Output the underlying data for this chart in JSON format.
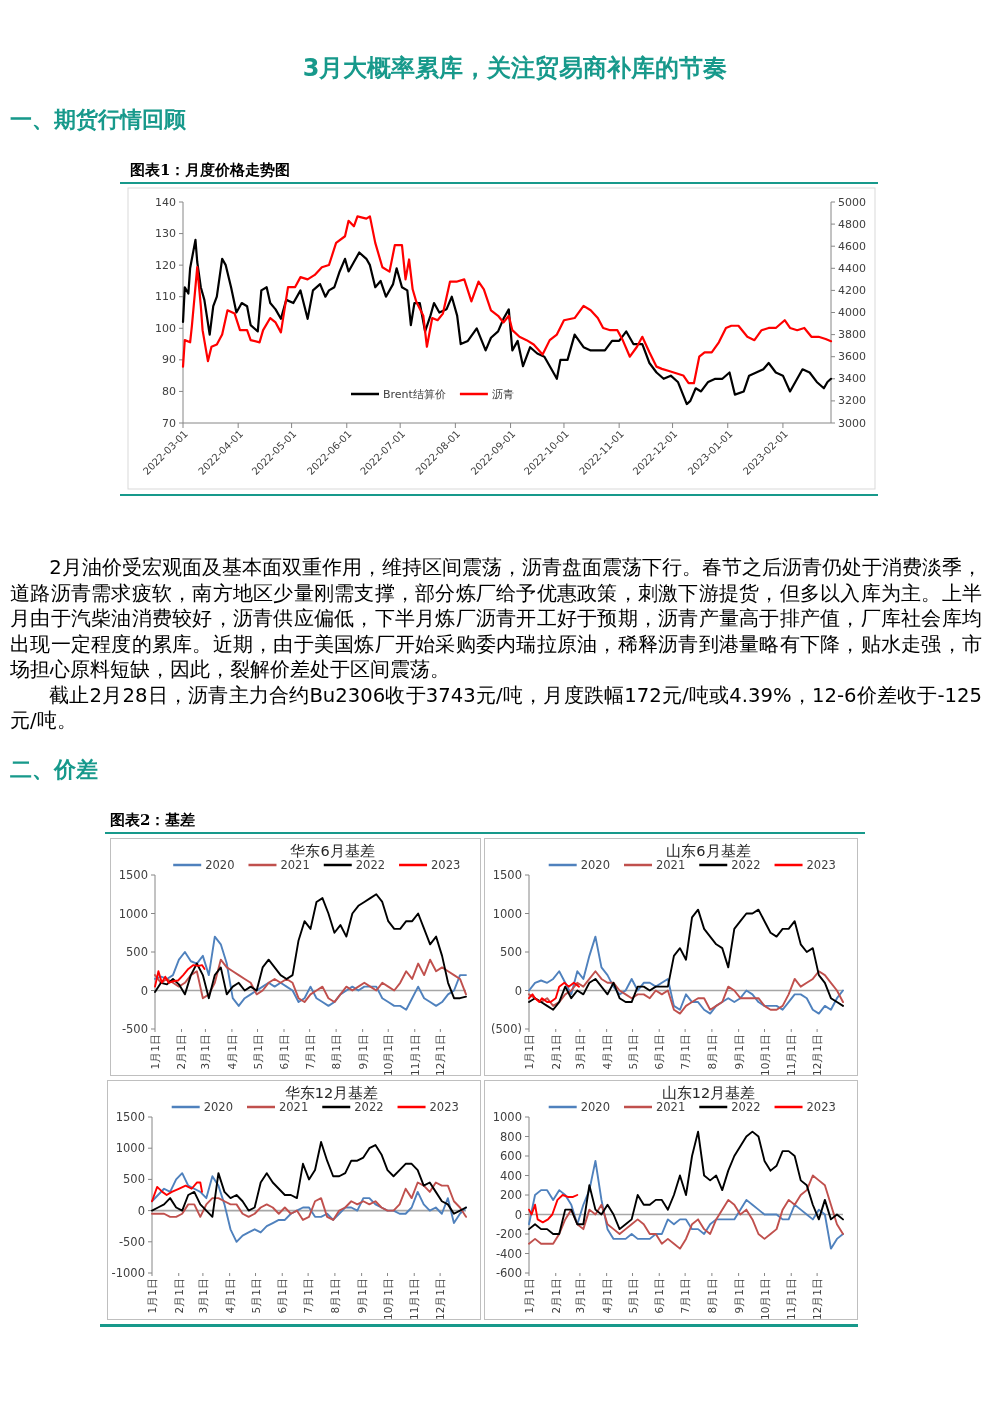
{
  "chart_data": [
    {
      "type": "line",
      "title": "图表1：月度价格走势图",
      "annotations": [
        "3月大概率累库，关注贸易商补库的节奏",
        "一、期货行情回顾",
        "2月油价受宏观面及基本面双重作用，维持区间震荡，沥青盘面震荡下行。春节之后沥青仍处于消费淡季，道路沥青需求疲软，南方地区少量刚需支撑，部分炼厂给予优惠政策，刺激下游提货，但多以入库为主。上半月由于汽柴油消费较好，沥青供应偏低，下半月炼厂沥青开工好于预期，沥青产量高于排产值，厂库社会库均出现一定程度的累库。近期，由于美国炼厂开始采购委内瑞拉原油，稀释沥青到港量略有下降，贴水走强，市场担心原料短缺，因此，裂解价差处于区间震荡。",
        "截止2月28日，沥青主力合约Bu2306收于3743元/吨，月度跌幅172元/吨或4.39%，12-6价差收于-125元/吨。",
        "二、价差",
        "图表2：基差"
      ],
      "xlim": [
        "2022-03-01",
        "2023-02-28"
      ],
      "xticks": [
        "2022-03-01",
        "2022-04-01",
        "2022-05-01",
        "2022-06-01",
        "2022-07-01",
        "2022-08-01",
        "2022-09-01",
        "2022-10-01",
        "2022-11-01",
        "2022-12-01",
        "2023-01-01",
        "2023-02-01"
      ],
      "ylim": [
        70,
        140
      ],
      "yticks": [
        70,
        80,
        90,
        100,
        110,
        120,
        130,
        140
      ],
      "y2lim": [
        3000,
        5000
      ],
      "y2ticks": [
        3000,
        3200,
        3400,
        3600,
        3800,
        4000,
        4200,
        4400,
        4600,
        4800,
        5000
      ],
      "legend": "bottom",
      "series": [
        {
          "name": "Brent结算价",
          "color": "#000000",
          "x": [
            "2022-03-01",
            "2022-03-02",
            "2022-03-04",
            "2022-03-05",
            "2022-03-08",
            "2022-03-09",
            "2022-03-11",
            "2022-03-13",
            "2022-03-16",
            "2022-03-18",
            "2022-03-20",
            "2022-03-23",
            "2022-03-25",
            "2022-03-28",
            "2022-03-31",
            "2022-04-03",
            "2022-04-06",
            "2022-04-08",
            "2022-04-12",
            "2022-04-14",
            "2022-04-17",
            "2022-04-19",
            "2022-04-22",
            "2022-04-25",
            "2022-04-28",
            "2022-05-02",
            "2022-05-06",
            "2022-05-10",
            "2022-05-13",
            "2022-05-17",
            "2022-05-20",
            "2022-05-22",
            "2022-05-25",
            "2022-05-28",
            "2022-05-31",
            "2022-06-02",
            "2022-06-05",
            "2022-06-08",
            "2022-06-12",
            "2022-06-14",
            "2022-06-17",
            "2022-06-20",
            "2022-06-23",
            "2022-06-27",
            "2022-06-29",
            "2022-07-02",
            "2022-07-05",
            "2022-07-07",
            "2022-07-09",
            "2022-07-12",
            "2022-07-15",
            "2022-07-18",
            "2022-07-20",
            "2022-07-23",
            "2022-07-27",
            "2022-07-30",
            "2022-08-02",
            "2022-08-04",
            "2022-08-08",
            "2022-08-13",
            "2022-08-18",
            "2022-08-21",
            "2022-08-25",
            "2022-08-28",
            "2022-08-31",
            "2022-09-02",
            "2022-09-05",
            "2022-09-08",
            "2022-09-12",
            "2022-09-16",
            "2022-09-20",
            "2022-09-24",
            "2022-09-27",
            "2022-09-29",
            "2022-10-03",
            "2022-10-07",
            "2022-10-12",
            "2022-10-16",
            "2022-10-20",
            "2022-10-24",
            "2022-10-28",
            "2022-11-01",
            "2022-11-05",
            "2022-11-09",
            "2022-11-14",
            "2022-11-18",
            "2022-11-22",
            "2022-11-26",
            "2022-11-30",
            "2022-12-04",
            "2022-12-09",
            "2022-12-11",
            "2022-12-14",
            "2022-12-17",
            "2022-12-21",
            "2022-12-25",
            "2022-12-29",
            "2023-01-02",
            "2023-01-05",
            "2023-01-10",
            "2023-01-13",
            "2023-01-17",
            "2023-01-21",
            "2023-01-24",
            "2023-01-28",
            "2023-02-01",
            "2023-02-05",
            "2023-02-09",
            "2023-02-12",
            "2023-02-16",
            "2023-02-20",
            "2023-02-24",
            "2023-02-26",
            "2023-02-28"
          ],
          "values": [
            102,
            113,
            111,
            119,
            128,
            121,
            113,
            109,
            98,
            107,
            110,
            122,
            120,
            113,
            105,
            108,
            107,
            101,
            99,
            112,
            113,
            108,
            106,
            103,
            109,
            108,
            112,
            103,
            112,
            114,
            110,
            112,
            113,
            118,
            122,
            118,
            121,
            124,
            122,
            120,
            113,
            115,
            110,
            114,
            119,
            113,
            112,
            101,
            108,
            108,
            99,
            104,
            108,
            105,
            106,
            110,
            104,
            95,
            96,
            100,
            93,
            97,
            99,
            103,
            106,
            93,
            96,
            88,
            94,
            92,
            91,
            87,
            84,
            90,
            90,
            98,
            94,
            93,
            93,
            93,
            96,
            96,
            99,
            95,
            95,
            89,
            86,
            84,
            85,
            83,
            76,
            77,
            81,
            80,
            83,
            84,
            84,
            86,
            79,
            80,
            85,
            86,
            87,
            89,
            86,
            85,
            80,
            84,
            87,
            86,
            83,
            81,
            83,
            84
          ]
        },
        {
          "name": "沥青",
          "color": "#ff0000",
          "axis": "y2",
          "x": [
            "2022-03-01",
            "2022-03-02",
            "2022-03-05",
            "2022-03-06",
            "2022-03-09",
            "2022-03-11",
            "2022-03-12",
            "2022-03-15",
            "2022-03-17",
            "2022-03-20",
            "2022-03-23",
            "2022-03-26",
            "2022-03-30",
            "2022-04-02",
            "2022-04-06",
            "2022-04-08",
            "2022-04-13",
            "2022-04-15",
            "2022-04-19",
            "2022-04-22",
            "2022-04-25",
            "2022-04-29",
            "2022-05-03",
            "2022-05-06",
            "2022-05-10",
            "2022-05-14",
            "2022-05-18",
            "2022-05-22",
            "2022-05-26",
            "2022-05-31",
            "2022-06-02",
            "2022-06-05",
            "2022-06-07",
            "2022-06-12",
            "2022-06-14",
            "2022-06-17",
            "2022-06-21",
            "2022-06-25",
            "2022-06-28",
            "2022-07-02",
            "2022-07-04",
            "2022-07-06",
            "2022-07-08",
            "2022-07-10",
            "2022-07-14",
            "2022-07-16",
            "2022-07-19",
            "2022-07-22",
            "2022-07-25",
            "2022-07-29",
            "2022-08-02",
            "2022-08-06",
            "2022-08-10",
            "2022-08-14",
            "2022-08-17",
            "2022-08-21",
            "2022-08-25",
            "2022-08-28",
            "2022-08-31",
            "2022-09-02",
            "2022-09-06",
            "2022-09-10",
            "2022-09-14",
            "2022-09-19",
            "2022-09-23",
            "2022-09-27",
            "2022-10-01",
            "2022-10-07",
            "2022-10-12",
            "2022-10-16",
            "2022-10-20",
            "2022-10-23",
            "2022-10-27",
            "2022-10-31",
            "2022-11-03",
            "2022-11-07",
            "2022-11-11",
            "2022-11-14",
            "2022-11-18",
            "2022-11-22",
            "2022-11-25",
            "2022-11-29",
            "2022-12-03",
            "2022-12-07",
            "2022-12-10",
            "2022-12-13",
            "2022-12-16",
            "2022-12-19",
            "2022-12-23",
            "2022-12-27",
            "2022-12-31",
            "2023-01-03",
            "2023-01-07",
            "2023-01-12",
            "2023-01-16",
            "2023-01-20",
            "2023-01-24",
            "2023-01-28",
            "2023-02-02",
            "2023-02-05",
            "2023-02-09",
            "2023-02-13",
            "2023-02-17",
            "2023-02-21",
            "2023-02-25",
            "2023-02-28"
          ],
          "values": [
            3510,
            3750,
            3730,
            3880,
            4410,
            4060,
            3840,
            3560,
            3690,
            3710,
            3800,
            4020,
            3990,
            3840,
            3840,
            3750,
            3730,
            3840,
            3950,
            3910,
            3820,
            4230,
            4230,
            4320,
            4300,
            4340,
            4410,
            4430,
            4630,
            4690,
            4830,
            4780,
            4870,
            4850,
            4870,
            4630,
            4410,
            4370,
            4610,
            4610,
            4300,
            4480,
            4210,
            4100,
            3970,
            3690,
            3950,
            3930,
            3990,
            4280,
            4280,
            4300,
            4100,
            4280,
            4210,
            4020,
            3970,
            3910,
            3970,
            3840,
            3780,
            3750,
            3710,
            3620,
            3750,
            3800,
            3930,
            3950,
            4060,
            4020,
            3950,
            3860,
            3840,
            3840,
            3750,
            3600,
            3690,
            3780,
            3640,
            3510,
            3490,
            3470,
            3450,
            3430,
            3360,
            3360,
            3600,
            3640,
            3640,
            3730,
            3860,
            3880,
            3880,
            3780,
            3750,
            3840,
            3860,
            3860,
            3930,
            3860,
            3840,
            3860,
            3780,
            3780,
            3760,
            3740
          ]
        }
      ]
    },
    {
      "type": "line",
      "title": "华东6月基差",
      "x": [
        "--01-01",
        "--01-08",
        "--01-15",
        "--01-22",
        "--01-29",
        "--02-05",
        "--02-12",
        "--02-19",
        "--02-26",
        "--03-05",
        "--03-12",
        "--03-19",
        "--03-26",
        "--04-02",
        "--04-09",
        "--04-16",
        "--04-23",
        "--04-30",
        "--05-07",
        "--05-14",
        "--05-21",
        "--05-28",
        "--06-04",
        "--06-11",
        "--06-18",
        "--06-25",
        "--07-02",
        "--07-09",
        "--07-16",
        "--07-23",
        "--07-30",
        "--08-06",
        "--08-13",
        "--08-20",
        "--08-27",
        "--09-03",
        "--09-10",
        "--09-17",
        "--09-24",
        "--10-01",
        "--10-08",
        "--10-15",
        "--10-22",
        "--10-29",
        "--11-05",
        "--11-12",
        "--11-19",
        "--11-26",
        "--12-03",
        "--12-10",
        "--12-17",
        "--12-24",
        "--12-31"
      ],
      "xlim": [
        "--01-01",
        "--12-31"
      ],
      "xticks": [
        {
          "value": "--01-01",
          "label": "1月1日"
        },
        {
          "value": "--02-01",
          "label": "2月1日"
        },
        {
          "value": "--03-01",
          "label": "3月1日"
        },
        {
          "value": "--04-01",
          "label": "4月1日"
        },
        {
          "value": "--05-01",
          "label": "5月1日"
        },
        {
          "value": "--06-01",
          "label": "6月1日"
        },
        {
          "value": "--07-01",
          "label": "7月1日"
        },
        {
          "value": "--08-01",
          "label": "8月1日"
        },
        {
          "value": "--09-01",
          "label": "9月1日"
        },
        {
          "value": "--10-01",
          "label": "10月1日"
        },
        {
          "value": "--11-01",
          "label": "11月1日"
        },
        {
          "value": "--12-01",
          "label": "12月1日"
        }
      ],
      "ylim": [
        -500,
        1500
      ],
      "yticks": [
        -500,
        0,
        500,
        1000,
        1500
      ],
      "legend": "top",
      "series": [
        {
          "name": "2020",
          "color": "#4f81bd",
          "values": [
            150,
            180,
            150,
            200,
            400,
            500,
            380,
            350,
            450,
            200,
            700,
            600,
            350,
            -100,
            -200,
            -100,
            -50,
            0,
            50,
            100,
            50,
            100,
            50,
            0,
            -150,
            -100,
            50,
            -100,
            -150,
            -200,
            -150,
            -50,
            0,
            50,
            0,
            50,
            50,
            50,
            -100,
            -150,
            -200,
            -200,
            -250,
            -100,
            50,
            -100,
            -150,
            -200,
            -150,
            -50,
            0,
            200,
            200
          ]
        },
        {
          "name": "2021",
          "color": "#c0504d",
          "values": [
            200,
            100,
            150,
            100,
            50,
            100,
            200,
            250,
            -100,
            -50,
            100,
            400,
            300,
            250,
            200,
            150,
            100,
            -50,
            0,
            100,
            150,
            100,
            150,
            100,
            -100,
            -150,
            -50,
            0,
            50,
            -100,
            -150,
            -50,
            50,
            0,
            50,
            100,
            50,
            0,
            100,
            50,
            0,
            100,
            250,
            150,
            350,
            200,
            400,
            250,
            300,
            250,
            200,
            150,
            -50
          ]
        },
        {
          "name": "2022",
          "color": "#000000",
          "values": [
            -20,
            100,
            80,
            150,
            80,
            -50,
            200,
            350,
            200,
            -100,
            200,
            300,
            -50,
            50,
            100,
            0,
            50,
            0,
            300,
            400,
            300,
            200,
            150,
            200,
            650,
            900,
            800,
            1150,
            1200,
            1000,
            750,
            850,
            700,
            1000,
            1100,
            1150,
            1200,
            1250,
            1150,
            900,
            800,
            800,
            900,
            900,
            1000,
            800,
            600,
            700,
            450,
            100,
            -100,
            -100,
            -80
          ]
        },
        {
          "name": "2023",
          "color": "#ff0000",
          "x": [
            "--01-01",
            "--01-05",
            "--01-09",
            "--01-13",
            "--01-17",
            "--01-22",
            "--01-28",
            "--02-03",
            "--02-09",
            "--02-15",
            "--02-21",
            "--02-25",
            "--02-28"
          ],
          "values": [
            50,
            250,
            100,
            180,
            100,
            120,
            130,
            200,
            280,
            330,
            320,
            330,
            280
          ]
        }
      ]
    },
    {
      "type": "line",
      "title": "山东6月基差",
      "x": [
        "--01-01",
        "--01-08",
        "--01-15",
        "--01-22",
        "--01-29",
        "--02-05",
        "--02-12",
        "--02-19",
        "--02-26",
        "--03-05",
        "--03-12",
        "--03-19",
        "--03-26",
        "--04-02",
        "--04-09",
        "--04-16",
        "--04-23",
        "--04-30",
        "--05-07",
        "--05-14",
        "--05-21",
        "--05-28",
        "--06-04",
        "--06-11",
        "--06-18",
        "--06-25",
        "--07-02",
        "--07-09",
        "--07-16",
        "--07-23",
        "--07-30",
        "--08-06",
        "--08-13",
        "--08-20",
        "--08-27",
        "--09-03",
        "--09-10",
        "--09-17",
        "--09-24",
        "--10-01",
        "--10-08",
        "--10-15",
        "--10-22",
        "--10-29",
        "--11-05",
        "--11-12",
        "--11-19",
        "--11-26",
        "--12-03",
        "--12-10",
        "--12-17",
        "--12-24",
        "--12-31"
      ],
      "xlim": [
        "--01-01",
        "--12-31"
      ],
      "xticks": [
        {
          "value": "--01-01",
          "label": "1月1日"
        },
        {
          "value": "--02-01",
          "label": "2月1日"
        },
        {
          "value": "--03-01",
          "label": "3月1日"
        },
        {
          "value": "--04-01",
          "label": "4月1日"
        },
        {
          "value": "--05-01",
          "label": "5月1日"
        },
        {
          "value": "--06-01",
          "label": "6月1日"
        },
        {
          "value": "--07-01",
          "label": "7月1日"
        },
        {
          "value": "--08-01",
          "label": "8月1日"
        },
        {
          "value": "--09-01",
          "label": "9月1日"
        },
        {
          "value": "--10-01",
          "label": "10月1日"
        },
        {
          "value": "--11-01",
          "label": "11月1日"
        },
        {
          "value": "--12-01",
          "label": "12月1日"
        }
      ],
      "ylim": [
        -500,
        1500
      ],
      "yticks": [
        {
          "value": -500,
          "label": "(500)"
        },
        0,
        500,
        1000,
        1500
      ],
      "legend": "top",
      "series": [
        {
          "name": "2020",
          "color": "#4f81bd",
          "values": [
            0,
            100,
            130,
            100,
            150,
            250,
            100,
            -50,
            250,
            150,
            450,
            700,
            300,
            200,
            50,
            -50,
            0,
            150,
            0,
            100,
            100,
            50,
            100,
            150,
            -200,
            -250,
            -50,
            -150,
            -150,
            -250,
            -300,
            -200,
            -150,
            -100,
            -150,
            -100,
            0,
            -50,
            -150,
            -200,
            -200,
            -200,
            -250,
            -150,
            -50,
            -50,
            -100,
            -250,
            -300,
            -200,
            -250,
            -100,
            0
          ]
        },
        {
          "name": "2021",
          "color": "#c0504d",
          "values": [
            -50,
            -100,
            -150,
            -100,
            -200,
            -150,
            -50,
            0,
            100,
            50,
            150,
            250,
            150,
            100,
            100,
            0,
            -50,
            -100,
            -50,
            -50,
            -100,
            0,
            -50,
            0,
            -250,
            -300,
            -200,
            -150,
            -100,
            -100,
            -250,
            -200,
            -150,
            50,
            0,
            -100,
            -100,
            -100,
            -100,
            -200,
            -250,
            -250,
            -200,
            -50,
            150,
            50,
            100,
            150,
            250,
            200,
            100,
            0,
            -150
          ]
        },
        {
          "name": "2022",
          "color": "#000000",
          "values": [
            -150,
            -100,
            -150,
            -200,
            -250,
            -150,
            50,
            -100,
            0,
            -50,
            100,
            150,
            50,
            -50,
            100,
            -100,
            -150,
            -150,
            50,
            50,
            0,
            50,
            50,
            50,
            450,
            550,
            400,
            950,
            1050,
            800,
            700,
            600,
            550,
            300,
            800,
            900,
            1000,
            1000,
            1050,
            900,
            750,
            700,
            800,
            800,
            900,
            600,
            500,
            550,
            200,
            100,
            -100,
            -150,
            -200
          ]
        },
        {
          "name": "2023",
          "color": "#ff0000",
          "x": [
            "--01-01",
            "--01-05",
            "--01-08",
            "--01-13",
            "--01-16",
            "--01-22",
            "--01-26",
            "--02-01",
            "--02-05",
            "--02-11",
            "--02-16",
            "--02-22",
            "--02-28"
          ],
          "values": [
            -100,
            -50,
            -100,
            -150,
            -100,
            -150,
            -150,
            -100,
            50,
            100,
            50,
            100,
            50
          ]
        }
      ]
    },
    {
      "type": "line",
      "title": "华东12月基差",
      "x": [
        "--01-01",
        "--01-08",
        "--01-15",
        "--01-22",
        "--01-29",
        "--02-05",
        "--02-12",
        "--02-19",
        "--02-26",
        "--03-05",
        "--03-12",
        "--03-19",
        "--03-26",
        "--04-02",
        "--04-09",
        "--04-16",
        "--04-23",
        "--04-30",
        "--05-07",
        "--05-14",
        "--05-21",
        "--05-28",
        "--06-04",
        "--06-11",
        "--06-18",
        "--06-25",
        "--07-02",
        "--07-09",
        "--07-16",
        "--07-23",
        "--07-30",
        "--08-06",
        "--08-13",
        "--08-20",
        "--08-27",
        "--09-03",
        "--09-10",
        "--09-17",
        "--09-24",
        "--10-01",
        "--10-08",
        "--10-15",
        "--10-22",
        "--10-29",
        "--11-05",
        "--11-12",
        "--11-19",
        "--11-26",
        "--12-03",
        "--12-10",
        "--12-17",
        "--12-24",
        "--12-31"
      ],
      "xlim": [
        "--01-01",
        "--12-31"
      ],
      "xticks": [
        {
          "value": "--01-01",
          "label": "1月1日"
        },
        {
          "value": "--02-01",
          "label": "2月1日"
        },
        {
          "value": "--03-01",
          "label": "3月1日"
        },
        {
          "value": "--04-01",
          "label": "4月1日"
        },
        {
          "value": "--05-01",
          "label": "5月1日"
        },
        {
          "value": "--06-01",
          "label": "6月1日"
        },
        {
          "value": "--07-01",
          "label": "7月1日"
        },
        {
          "value": "--08-01",
          "label": "8月1日"
        },
        {
          "value": "--09-01",
          "label": "9月1日"
        },
        {
          "value": "--10-01",
          "label": "10月1日"
        },
        {
          "value": "--11-01",
          "label": "11月1日"
        },
        {
          "value": "--12-01",
          "label": "12月1日"
        }
      ],
      "ylim": [
        -1000,
        1500
      ],
      "yticks": [
        -1000,
        -500,
        0,
        500,
        1000,
        1500
      ],
      "legend": "top",
      "series": [
        {
          "name": "2020",
          "color": "#4f81bd",
          "values": [
            150,
            250,
            350,
            300,
            500,
            600,
            400,
            350,
            300,
            200,
            550,
            400,
            100,
            -300,
            -500,
            -400,
            -350,
            -300,
            -350,
            -250,
            -200,
            -150,
            -150,
            -50,
            0,
            50,
            50,
            -100,
            -100,
            -50,
            -150,
            -50,
            50,
            50,
            0,
            200,
            200,
            100,
            50,
            0,
            0,
            -50,
            -50,
            50,
            300,
            100,
            0,
            50,
            -50,
            200,
            -200,
            -50,
            50
          ]
        },
        {
          "name": "2021",
          "color": "#c0504d",
          "values": [
            -50,
            -50,
            -50,
            -100,
            -100,
            -50,
            100,
            100,
            -100,
            100,
            200,
            200,
            150,
            100,
            100,
            -50,
            -100,
            -50,
            50,
            100,
            50,
            -50,
            50,
            -50,
            0,
            -150,
            -100,
            150,
            200,
            -100,
            -150,
            0,
            50,
            150,
            100,
            150,
            100,
            150,
            50,
            0,
            0,
            100,
            350,
            200,
            450,
            400,
            300,
            450,
            400,
            400,
            150,
            50,
            -100
          ]
        },
        {
          "name": "2022",
          "color": "#000000",
          "values": [
            0,
            50,
            100,
            200,
            50,
            0,
            250,
            300,
            100,
            0,
            -100,
            600,
            300,
            200,
            250,
            150,
            0,
            50,
            450,
            600,
            450,
            350,
            250,
            250,
            200,
            750,
            500,
            650,
            1100,
            800,
            550,
            550,
            600,
            800,
            800,
            850,
            1000,
            1050,
            900,
            650,
            550,
            650,
            750,
            750,
            650,
            400,
            450,
            300,
            150,
            100,
            -50,
            0,
            50
          ]
        },
        {
          "name": "2023",
          "color": "#ff0000",
          "x": [
            "--01-01",
            "--01-07",
            "--01-13",
            "--01-18",
            "--01-24",
            "--02-01",
            "--02-09",
            "--02-16",
            "--02-22",
            "--02-26",
            "--02-28"
          ],
          "values": [
            150,
            380,
            300,
            250,
            300,
            350,
            400,
            350,
            450,
            450,
            300
          ]
        }
      ]
    },
    {
      "type": "line",
      "title": "山东12月基差",
      "x": [
        "--01-01",
        "--01-08",
        "--01-15",
        "--01-22",
        "--01-29",
        "--02-05",
        "--02-12",
        "--02-19",
        "--02-26",
        "--03-05",
        "--03-12",
        "--03-19",
        "--03-26",
        "--04-02",
        "--04-09",
        "--04-16",
        "--04-23",
        "--04-30",
        "--05-07",
        "--05-14",
        "--05-21",
        "--05-28",
        "--06-04",
        "--06-11",
        "--06-18",
        "--06-25",
        "--07-02",
        "--07-09",
        "--07-16",
        "--07-23",
        "--07-30",
        "--08-06",
        "--08-13",
        "--08-20",
        "--08-27",
        "--09-03",
        "--09-10",
        "--09-17",
        "--09-24",
        "--10-01",
        "--10-08",
        "--10-15",
        "--10-22",
        "--10-29",
        "--11-05",
        "--11-12",
        "--11-19",
        "--11-26",
        "--12-03",
        "--12-10",
        "--12-17",
        "--12-24",
        "--12-31"
      ],
      "xlim": [
        "--01-01",
        "--12-31"
      ],
      "xticks": [
        {
          "value": "--01-01",
          "label": "1月1日"
        },
        {
          "value": "--02-01",
          "label": "2月1日"
        },
        {
          "value": "--03-01",
          "label": "3月1日"
        },
        {
          "value": "--04-01",
          "label": "4月1日"
        },
        {
          "value": "--05-01",
          "label": "5月1日"
        },
        {
          "value": "--06-01",
          "label": "6月1日"
        },
        {
          "value": "--07-01",
          "label": "7月1日"
        },
        {
          "value": "--08-01",
          "label": "8月1日"
        },
        {
          "value": "--09-01",
          "label": "9月1日"
        },
        {
          "value": "--10-01",
          "label": "10月1日"
        },
        {
          "value": "--11-01",
          "label": "11月1日"
        },
        {
          "value": "--12-01",
          "label": "12月1日"
        }
      ],
      "ylim": [
        -600,
        1000
      ],
      "yticks": [
        -600,
        -400,
        -200,
        0,
        200,
        400,
        600,
        800,
        1000
      ],
      "legend": "top",
      "series": [
        {
          "name": "2020",
          "color": "#4f81bd",
          "values": [
            -100,
            200,
            250,
            250,
            150,
            250,
            200,
            100,
            -100,
            100,
            250,
            550,
            150,
            -150,
            -250,
            -250,
            -250,
            -200,
            -250,
            -250,
            -250,
            -200,
            -200,
            -50,
            -100,
            -50,
            -50,
            -150,
            -150,
            -200,
            -100,
            -50,
            -50,
            -50,
            -50,
            50,
            150,
            100,
            50,
            0,
            0,
            0,
            -50,
            -50,
            100,
            50,
            0,
            -50,
            50,
            0,
            -350,
            -250,
            -200
          ]
        },
        {
          "name": "2021",
          "color": "#c0504d",
          "values": [
            -300,
            -250,
            -300,
            -300,
            -300,
            -200,
            -50,
            50,
            -100,
            -150,
            50,
            0,
            100,
            -100,
            -150,
            -200,
            -150,
            -100,
            -50,
            -100,
            -200,
            -200,
            -300,
            -250,
            -300,
            -350,
            -250,
            -100,
            -50,
            -150,
            -200,
            -50,
            50,
            150,
            100,
            0,
            50,
            -50,
            -200,
            -250,
            -200,
            -150,
            50,
            150,
            100,
            200,
            250,
            400,
            350,
            300,
            100,
            -100,
            -200
          ]
        },
        {
          "name": "2022",
          "color": "#000000",
          "values": [
            -150,
            -100,
            -150,
            -150,
            -200,
            -200,
            50,
            50,
            -100,
            -100,
            300,
            50,
            0,
            100,
            0,
            -150,
            -100,
            -50,
            200,
            100,
            100,
            150,
            150,
            50,
            200,
            400,
            200,
            600,
            850,
            400,
            350,
            400,
            250,
            450,
            600,
            700,
            800,
            850,
            800,
            550,
            450,
            500,
            650,
            650,
            600,
            350,
            300,
            100,
            -50,
            150,
            -50,
            0,
            -50
          ]
        },
        {
          "name": "2023",
          "color": "#ff0000",
          "x": [
            "--01-01",
            "--01-04",
            "--01-08",
            "--01-11",
            "--01-17",
            "--01-23",
            "--01-28",
            "--02-03",
            "--02-09",
            "--02-15",
            "--02-21",
            "--02-26"
          ],
          "values": [
            50,
            0,
            100,
            -50,
            -80,
            -50,
            0,
            150,
            200,
            180,
            180,
            200
          ]
        }
      ]
    }
  ]
}
